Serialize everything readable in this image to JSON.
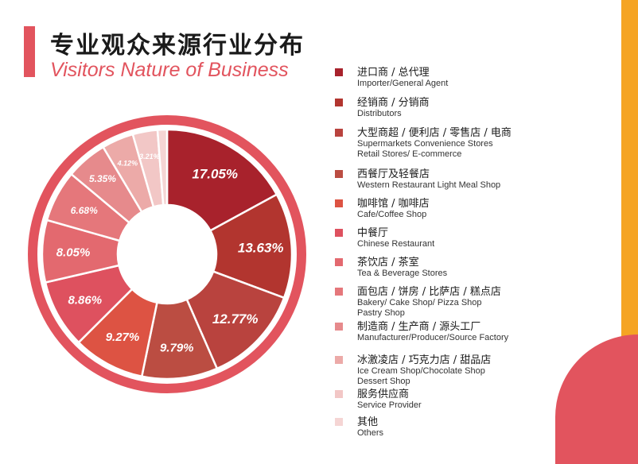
{
  "header": {
    "title_cn": "专业观众来源行业分布",
    "title_en": "Visitors Nature of Business"
  },
  "colors": {
    "accent": "#e2545e",
    "orange": "#f5a423",
    "ring": "#e2545e"
  },
  "chart_data": {
    "type": "pie",
    "variant": "donut",
    "title": "专业观众来源行业分布",
    "subtitle": "Visitors Nature of Business",
    "legend_position": "right",
    "slices": [
      {
        "name_cn": "进口商 / 总代理",
        "name_en": "Importer/General Agent",
        "name_en2": "",
        "value": 17.05,
        "label": "17.05%",
        "color": "#a8222c"
      },
      {
        "name_cn": "经销商 / 分销商",
        "name_en": "Distributors",
        "name_en2": "",
        "value": 13.63,
        "label": "13.63%",
        "color": "#b2352f"
      },
      {
        "name_cn": "大型商超 / 便利店 / 零售店 / 电商",
        "name_en": "Supermarkets Convenience Stores",
        "name_en2": "Retail Stores/ E-commerce",
        "value": 12.77,
        "label": "12.77%",
        "color": "#b9433e"
      },
      {
        "name_cn": "西餐厅及轻餐店",
        "name_en": "Western Restaurant Light Meal Shop",
        "name_en2": "",
        "value": 9.79,
        "label": "9.79%",
        "color": "#bb4d42"
      },
      {
        "name_cn": "咖啡馆 / 咖啡店",
        "name_en": "Cafe/Coffee Shop",
        "name_en2": "",
        "value": 9.27,
        "label": "9.27%",
        "color": "#dd5343"
      },
      {
        "name_cn": "中餐厅",
        "name_en": "Chinese Restaurant",
        "name_en2": "",
        "value": 8.86,
        "label": "8.86%",
        "color": "#de515f"
      },
      {
        "name_cn": "茶饮店 / 茶室",
        "name_en": "Tea & Beverage Stores",
        "name_en2": "",
        "value": 8.05,
        "label": "8.05%",
        "color": "#e3696f"
      },
      {
        "name_cn": "面包店 / 饼房 / 比萨店 / 糕点店",
        "name_en": "Bakery/ Cake Shop/ Pizza Shop",
        "name_en2": "Pastry Shop",
        "value": 6.68,
        "label": "6.68%",
        "color": "#e5777b"
      },
      {
        "name_cn": "制造商 / 生产商 / 源头工厂",
        "name_en": "Manufacturer/Producer/Source Factory",
        "name_en2": "",
        "value": 5.35,
        "label": "5.35%",
        "color": "#e68a8c"
      },
      {
        "name_cn": "冰激凌店 / 巧克力店 / 甜品店",
        "name_en": "Ice Cream Shop/Chocolate Shop",
        "name_en2": "Dessert Shop",
        "value": 4.12,
        "label": "4.12%",
        "color": "#ecaaa8"
      },
      {
        "name_cn": "服务供应商",
        "name_en": "Service Provider",
        "name_en2": "",
        "value": 3.21,
        "label": "3.21%",
        "color": "#f2c7c6"
      },
      {
        "name_cn": "其他",
        "name_en": "Others",
        "name_en2": "",
        "value": 1.22,
        "label": "",
        "color": "#f5d5d4"
      }
    ]
  }
}
